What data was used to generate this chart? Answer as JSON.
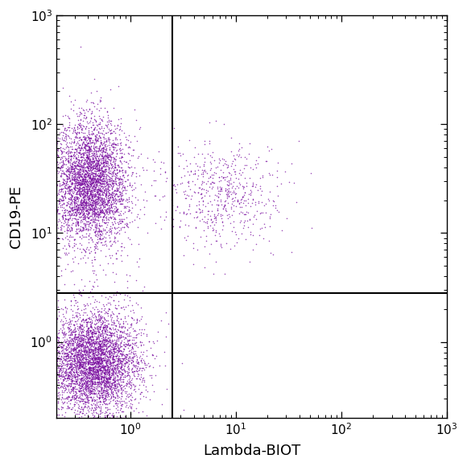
{
  "xlabel": "Lambda-BIOT",
  "ylabel": "CD19-PE",
  "xlim": [
    0.2,
    1000
  ],
  "ylim": [
    0.2,
    1000
  ],
  "gate_x": 2.5,
  "gate_y": 2.8,
  "dot_color": "#7B11A1",
  "dot_size": 1.2,
  "dot_alpha": 0.75,
  "background_color": "#ffffff",
  "seed": 42,
  "cluster1_n": 4500,
  "cluster1_x_mean": 0.45,
  "cluster1_x_sigma": 0.5,
  "cluster1_y_mean": 0.65,
  "cluster1_y_sigma": 0.55,
  "cluster2_n": 4000,
  "cluster2_x_mean": 0.42,
  "cluster2_x_sigma": 0.42,
  "cluster2_y_mean": 28.0,
  "cluster2_y_sigma": 0.65,
  "cluster3_n": 600,
  "cluster3_x_mean": 7.0,
  "cluster3_x_sigma": 0.65,
  "cluster3_y_mean": 22.0,
  "cluster3_y_sigma": 0.55,
  "figsize": [
    5.8,
    5.8
  ],
  "dpi": 100,
  "label_fontsize": 13,
  "tick_labelsize": 11,
  "gate_linewidth": 1.5,
  "spine_linewidth": 1.0
}
